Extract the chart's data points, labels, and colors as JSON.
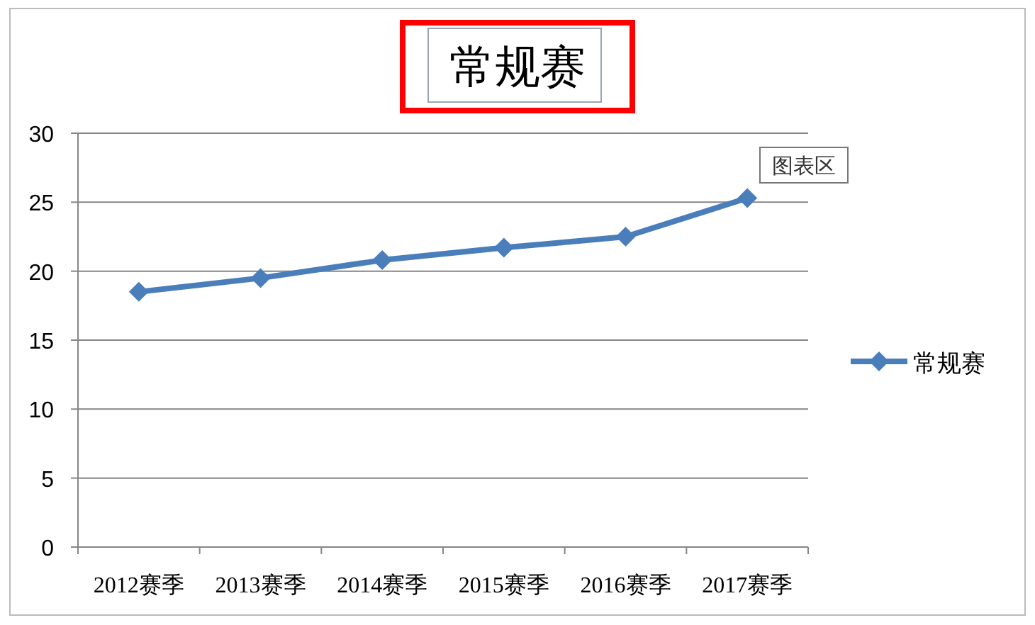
{
  "chart_data": {
    "type": "line",
    "title": "常规赛",
    "categories": [
      "2012赛季",
      "2013赛季",
      "2014赛季",
      "2015赛季",
      "2016赛季",
      "2017赛季"
    ],
    "series": [
      {
        "name": "常规赛",
        "color": "#4a7ebb",
        "values": [
          18.5,
          19.5,
          20.8,
          21.7,
          22.5,
          25.3
        ]
      }
    ],
    "ylim": [
      0,
      30
    ],
    "yticks": [
      0,
      5,
      10,
      15,
      20,
      25,
      30
    ],
    "grid": "y",
    "legend": "right",
    "marker": "diamond",
    "annotations": [
      "图表区"
    ]
  }
}
